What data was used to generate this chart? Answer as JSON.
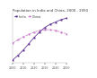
{
  "title": "Population in India and China, 2000 - 2050",
  "india_color": "#5b2d8e",
  "china_color": "#c879c8",
  "india_label": "India",
  "china_label": "China",
  "years": [
    2000,
    2005,
    2010,
    2015,
    2020,
    2025,
    2030,
    2035,
    2040,
    2045,
    2050
  ],
  "india_values": [
    1.04,
    1.1,
    1.17,
    1.25,
    1.33,
    1.4,
    1.46,
    1.5,
    1.53,
    1.56,
    1.58
  ],
  "china_values": [
    1.26,
    1.3,
    1.34,
    1.37,
    1.4,
    1.42,
    1.43,
    1.43,
    1.42,
    1.4,
    1.38
  ],
  "xlim": [
    2000,
    2050
  ],
  "ylim": [
    1.0,
    1.65
  ],
  "xticks": [
    2000,
    2010,
    2020,
    2030,
    2040,
    2050
  ],
  "background_color": "#ffffff",
  "title_fontsize": 2.8,
  "legend_fontsize": 2.5,
  "tick_fontsize": 2.3,
  "marker_size": 1.4,
  "line_width": 0.55
}
